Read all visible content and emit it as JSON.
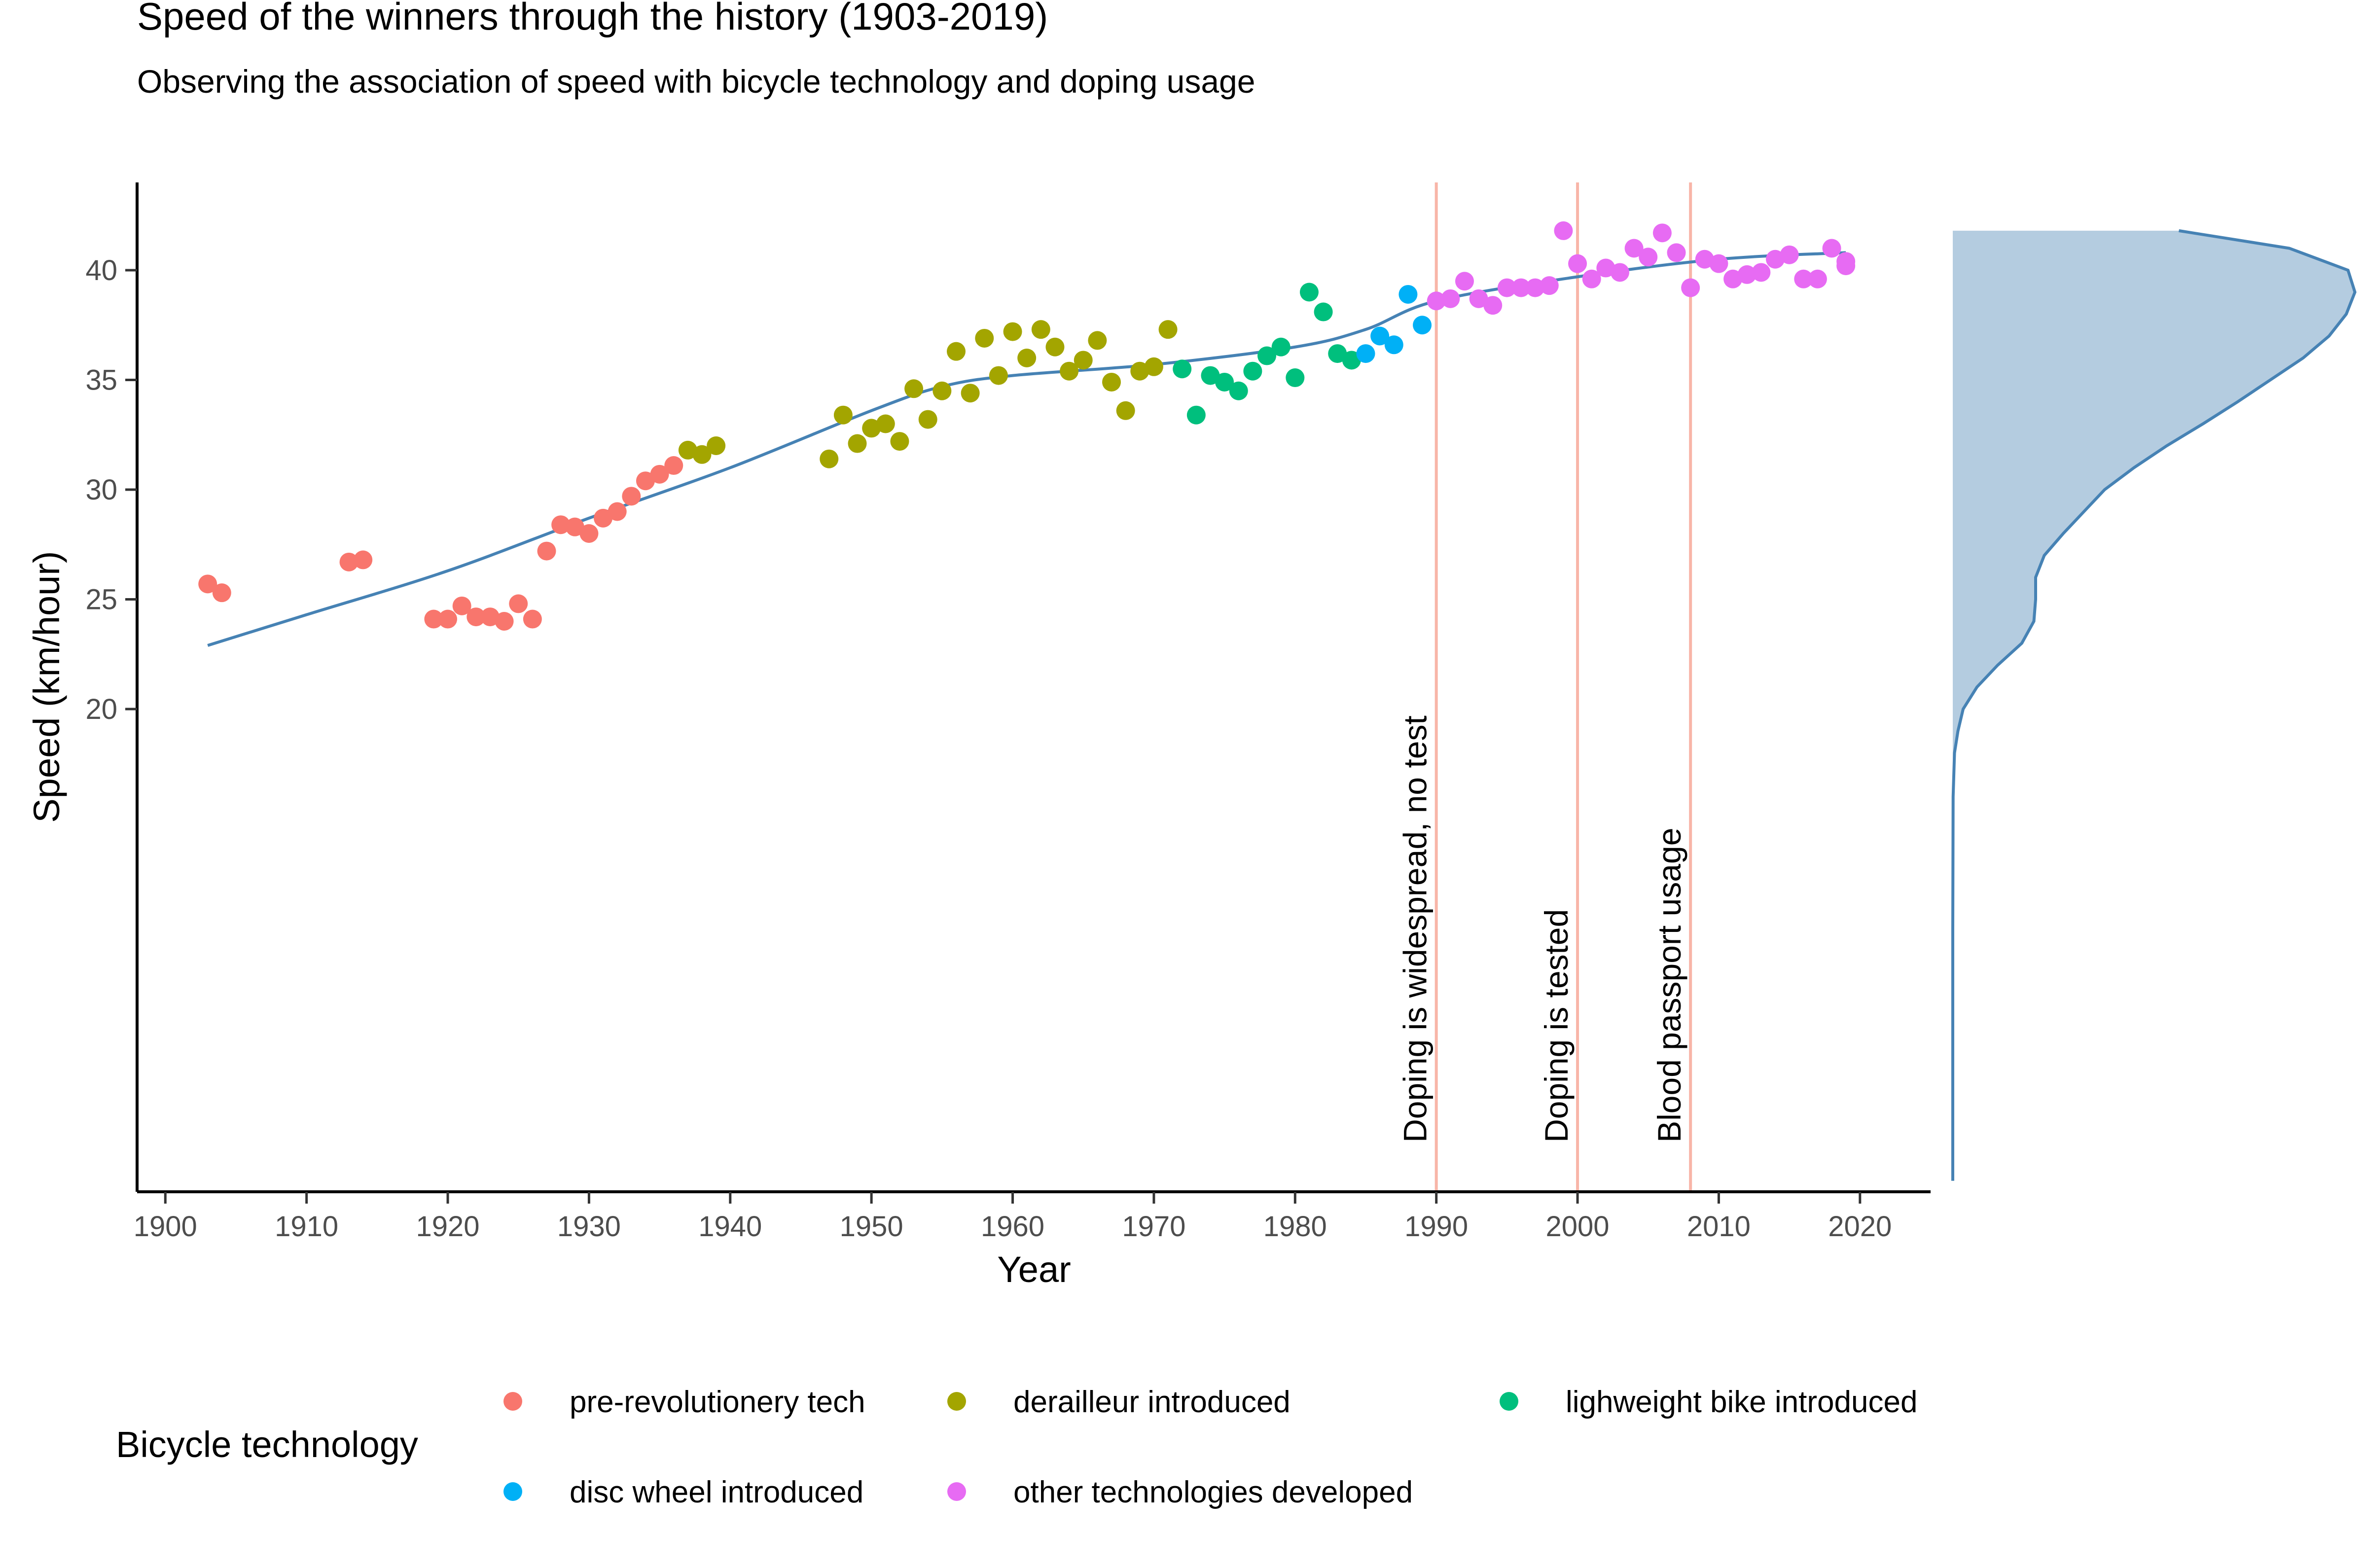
{
  "chart_data": {
    "type": "scatter",
    "title": "Speed of the winners through the history (1903-2019)",
    "subtitle": "Observing the association of speed with bicycle technology and doping usage",
    "xlabel": "Year",
    "ylabel": "Speed (km/hour)",
    "xlim": [
      1898,
      2025
    ],
    "ylim": [
      -2,
      44
    ],
    "x_ticks": [
      1900,
      1910,
      1920,
      1930,
      1940,
      1950,
      1960,
      1970,
      1980,
      1990,
      2000,
      2010,
      2020
    ],
    "y_ticks": [
      20,
      25,
      30,
      35,
      40
    ],
    "legend": {
      "title": "Bicycle technology",
      "position": "bottom",
      "entries": [
        {
          "key": "pre",
          "label": "pre-revolutionery tech",
          "color": "#F8766D"
        },
        {
          "key": "der",
          "label": "derailleur introduced",
          "color": "#A3A500"
        },
        {
          "key": "light",
          "label": "lighweight bike introduced",
          "color": "#00BF7D"
        },
        {
          "key": "disc",
          "label": "disc wheel introduced",
          "color": "#00B0F6"
        },
        {
          "key": "other",
          "label": "other technologies developed",
          "color": "#E76BF3"
        }
      ]
    },
    "series": [
      {
        "key": "pre",
        "color": "#F8766D",
        "points": [
          [
            1903,
            25.7
          ],
          [
            1904,
            25.3
          ],
          [
            1913,
            26.7
          ],
          [
            1914,
            26.8
          ],
          [
            1919,
            24.1
          ],
          [
            1920,
            24.1
          ],
          [
            1921,
            24.7
          ],
          [
            1922,
            24.2
          ],
          [
            1923,
            24.2
          ],
          [
            1924,
            24.0
          ],
          [
            1925,
            24.8
          ],
          [
            1926,
            24.1
          ],
          [
            1927,
            27.2
          ],
          [
            1928,
            28.4
          ],
          [
            1929,
            28.3
          ],
          [
            1930,
            28.0
          ],
          [
            1931,
            28.7
          ],
          [
            1932,
            29.0
          ],
          [
            1933,
            29.7
          ],
          [
            1934,
            30.4
          ],
          [
            1935,
            30.7
          ],
          [
            1936,
            31.1
          ]
        ]
      },
      {
        "key": "der",
        "color": "#A3A500",
        "points": [
          [
            1937,
            31.8
          ],
          [
            1938,
            31.6
          ],
          [
            1939,
            32.0
          ],
          [
            1947,
            31.4
          ],
          [
            1948,
            33.4
          ],
          [
            1949,
            32.1
          ],
          [
            1950,
            32.8
          ],
          [
            1951,
            33.0
          ],
          [
            1952,
            32.2
          ],
          [
            1953,
            34.6
          ],
          [
            1954,
            33.2
          ],
          [
            1955,
            34.5
          ],
          [
            1956,
            36.3
          ],
          [
            1957,
            34.4
          ],
          [
            1958,
            36.9
          ],
          [
            1959,
            35.2
          ],
          [
            1960,
            37.2
          ],
          [
            1961,
            36.0
          ],
          [
            1962,
            37.3
          ],
          [
            1963,
            36.5
          ],
          [
            1964,
            35.4
          ],
          [
            1965,
            35.9
          ],
          [
            1966,
            36.8
          ],
          [
            1967,
            34.9
          ],
          [
            1968,
            33.6
          ],
          [
            1969,
            35.4
          ],
          [
            1970,
            35.6
          ],
          [
            1971,
            37.3
          ]
        ]
      },
      {
        "key": "light",
        "color": "#00BF7D",
        "points": [
          [
            1972,
            35.5
          ],
          [
            1973,
            33.4
          ],
          [
            1974,
            35.2
          ],
          [
            1975,
            34.9
          ],
          [
            1976,
            34.5
          ],
          [
            1977,
            35.4
          ],
          [
            1978,
            36.1
          ],
          [
            1979,
            36.5
          ],
          [
            1980,
            35.1
          ],
          [
            1981,
            39.0
          ],
          [
            1982,
            38.1
          ],
          [
            1983,
            36.2
          ],
          [
            1984,
            35.9
          ]
        ]
      },
      {
        "key": "disc",
        "color": "#00B0F6",
        "points": [
          [
            1985,
            36.2
          ],
          [
            1986,
            37.0
          ],
          [
            1987,
            36.6
          ],
          [
            1988,
            38.9
          ],
          [
            1989,
            37.5
          ]
        ]
      },
      {
        "key": "other",
        "color": "#E76BF3",
        "points": [
          [
            1990,
            38.6
          ],
          [
            1991,
            38.7
          ],
          [
            1992,
            39.5
          ],
          [
            1993,
            38.7
          ],
          [
            1994,
            38.4
          ],
          [
            1995,
            39.2
          ],
          [
            1996,
            39.2
          ],
          [
            1997,
            39.2
          ],
          [
            1998,
            39.3
          ],
          [
            1999,
            41.8
          ],
          [
            2000,
            40.3
          ],
          [
            2001,
            39.6
          ],
          [
            2002,
            40.1
          ],
          [
            2003,
            39.9
          ],
          [
            2004,
            41.0
          ],
          [
            2005,
            40.6
          ],
          [
            2006,
            41.7
          ],
          [
            2007,
            40.8
          ],
          [
            2008,
            39.2
          ],
          [
            2009,
            40.5
          ],
          [
            2010,
            40.3
          ],
          [
            2011,
            39.6
          ],
          [
            2012,
            39.8
          ],
          [
            2013,
            39.9
          ],
          [
            2014,
            40.5
          ],
          [
            2015,
            40.7
          ],
          [
            2016,
            39.6
          ],
          [
            2017,
            39.6
          ],
          [
            2018,
            41.0
          ],
          [
            2019,
            40.2
          ],
          [
            2019,
            40.4
          ]
        ]
      }
    ],
    "trend_line": {
      "color": "#4682B4",
      "points": [
        [
          1903,
          22.9
        ],
        [
          1910,
          24.3
        ],
        [
          1920,
          26.3
        ],
        [
          1930,
          28.7
        ],
        [
          1940,
          31.0
        ],
        [
          1950,
          33.6
        ],
        [
          1955,
          34.7
        ],
        [
          1960,
          35.2
        ],
        [
          1970,
          35.7
        ],
        [
          1980,
          36.5
        ],
        [
          1985,
          37.3
        ],
        [
          1990,
          38.6
        ],
        [
          2000,
          39.7
        ],
        [
          2010,
          40.5
        ],
        [
          2019,
          40.8
        ]
      ]
    },
    "vlines": [
      {
        "x": 1990,
        "label": "Doping is widespread, no test",
        "color": "#F8B5A8"
      },
      {
        "x": 2000,
        "label": "Doping is tested",
        "color": "#F8B5A8"
      },
      {
        "x": 2008,
        "label": "Blood passport usage",
        "color": "#F8B5A8"
      }
    ],
    "density": {
      "fill": "#B4CCE0",
      "line": "#4682B4",
      "profile": [
        [
          -1.5,
          0.0
        ],
        [
          10,
          0.0
        ],
        [
          16,
          0.002
        ],
        [
          18,
          0.01
        ],
        [
          19,
          0.03
        ],
        [
          20,
          0.06
        ],
        [
          21,
          0.14
        ],
        [
          22,
          0.26
        ],
        [
          23,
          0.4
        ],
        [
          24,
          0.47
        ],
        [
          25,
          0.48
        ],
        [
          26,
          0.48
        ],
        [
          27,
          0.53
        ],
        [
          28,
          0.64
        ],
        [
          29,
          0.76
        ],
        [
          30,
          0.88
        ],
        [
          31,
          1.05
        ],
        [
          32,
          1.24
        ],
        [
          33,
          1.45
        ],
        [
          34,
          1.65
        ],
        [
          35,
          1.84
        ],
        [
          36,
          2.03
        ],
        [
          37,
          2.18
        ],
        [
          38,
          2.28
        ],
        [
          39,
          2.33
        ],
        [
          40,
          2.29
        ],
        [
          41,
          1.95
        ],
        [
          41.8,
          1.31
        ]
      ]
    }
  }
}
